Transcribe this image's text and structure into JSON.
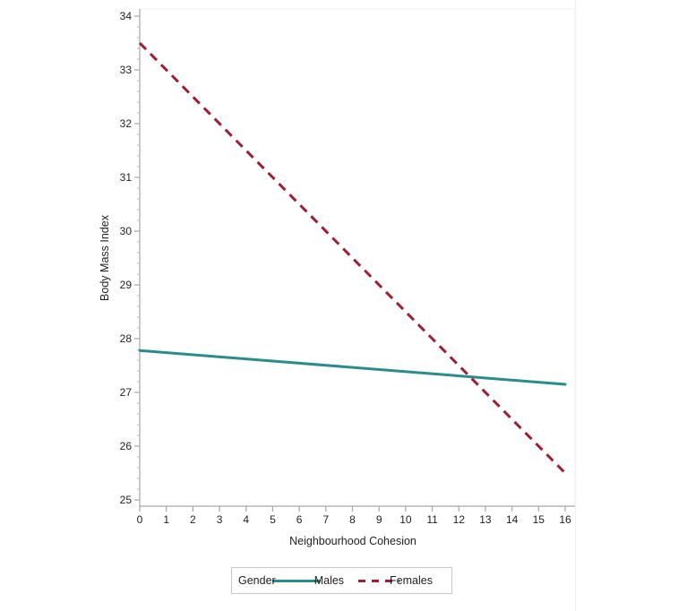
{
  "figure": {
    "background": "#ffffff"
  },
  "chart_data": {
    "type": "line",
    "title": "",
    "xlabel": "Neighbourhood Cohesion",
    "ylabel": "Body Mass Index",
    "xlim": [
      0,
      16.35
    ],
    "ylim": [
      24.88,
      34.13
    ],
    "x_ticks": [
      0,
      1,
      2,
      3,
      4,
      5,
      6,
      7,
      8,
      9,
      10,
      11,
      12,
      13,
      14,
      15,
      16
    ],
    "y_ticks": [
      25,
      26,
      27,
      28,
      29,
      30,
      31,
      32,
      33,
      34
    ],
    "y_minor_tick_step": 0.2,
    "grid": false,
    "legend": {
      "title": "Gender",
      "position": "bottom",
      "entries": [
        "Males",
        "Females"
      ]
    },
    "series": [
      {
        "name": "Males",
        "line_style": "solid",
        "color": "#2A8C8C",
        "x": [
          0,
          16
        ],
        "y": [
          27.78,
          27.15
        ]
      },
      {
        "name": "Females",
        "line_style": "dashed",
        "color": "#A01E33",
        "x": [
          0,
          16
        ],
        "y": [
          33.5,
          25.5
        ]
      }
    ]
  },
  "axes": {
    "x_title": "Neighbourhood Cohesion",
    "y_title": "Body Mass Index"
  },
  "legend": {
    "title": "Gender",
    "entries": [
      {
        "label": "Males"
      },
      {
        "label": "Females"
      }
    ]
  },
  "colors": {
    "males_line": "#2A8C8C",
    "females_line": "#A01E33",
    "axis_line": "#a6a6a6",
    "minor_tick": "#bcbcbc",
    "frame_light": "#efefef",
    "text": "#1f1f1f",
    "legend_border": "#c9c9c9"
  }
}
